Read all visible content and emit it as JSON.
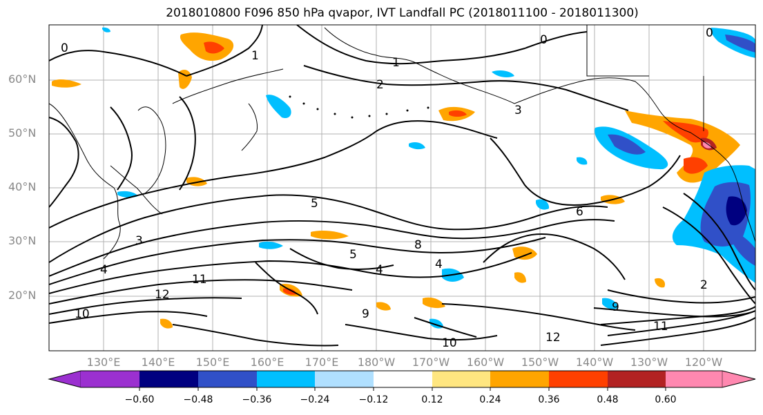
{
  "title": "2018010800 F096 850 hPa qvapor, IVT Landfall PC (2018011100 - 2018011300)",
  "lat_labels": [
    "60°N",
    "50°N",
    "40°N",
    "30°N",
    "20°N"
  ],
  "lon_labels": [
    "130°E",
    "140°E",
    "150°E",
    "160°E",
    "170°E",
    "180°W",
    "170°W",
    "160°W",
    "150°W",
    "140°W",
    "130°W",
    "120°W"
  ],
  "colorbar": {
    "ticks": [
      "−0.60",
      "−0.48",
      "−0.36",
      "−0.24",
      "−0.12",
      "0.12",
      "0.24",
      "0.36",
      "0.48",
      "0.60"
    ],
    "colors": [
      "#9b30d0",
      "#000080",
      "#3050c8",
      "#00bfff",
      "#b0e0ff",
      "#ffffff",
      "#ffe680",
      "#ffa500",
      "#ff4000",
      "#b22222",
      "#ff88b0"
    ]
  },
  "contour_labels": [
    "0",
    "0",
    "0",
    "1",
    "1",
    "2",
    "3",
    "3",
    "4",
    "4",
    "5",
    "5",
    "6",
    "8",
    "9",
    "9",
    "10",
    "10",
    "11",
    "11",
    "12",
    "12",
    "4",
    "2"
  ]
}
